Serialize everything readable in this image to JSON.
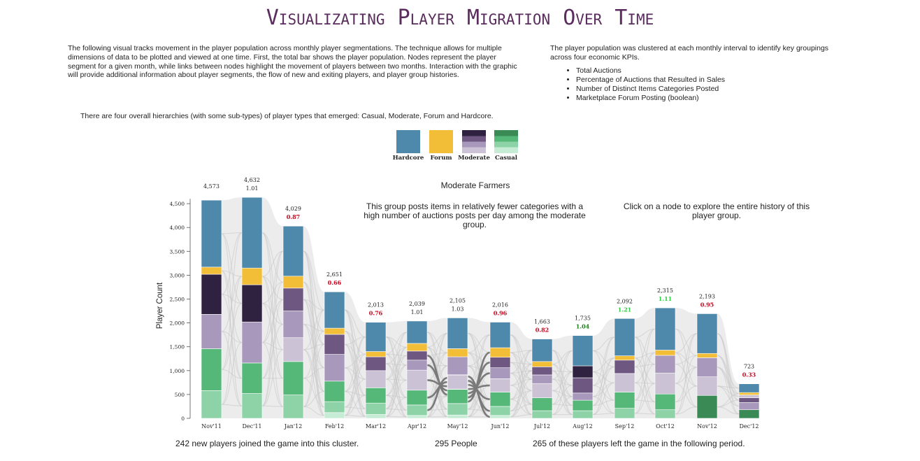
{
  "title": "Visualizating Player Migration Over Time",
  "intro_left": "The following visual tracks movement in the player population across monthly player segmentations. The technique allows for multiple dimensions of data to be plotted and viewed at one time. First, the total bar shows the player population. Nodes represent the player segment for a given month, while links between nodes highlight the movement of players between two months. Interaction with the graphic will provide additional information about player segments, the flow of new and exiting players, and player group histories.",
  "intro_right": "The player population was clustered at each monthly interval to identify key groupings across four economic KPIs.",
  "kpis": [
    "Total Auctions",
    "Percentage of Auctions that Resulted in Sales",
    "Number of Distinct Items Categories Posted",
    "Marketplace Forum Posting (boolean)"
  ],
  "hierarchy_text": "There are four overall hierarchies (with some sub-types) of player types that emerged: Casual, Moderate, Forum and Hardcore.",
  "legend": [
    {
      "label": "Hardcore",
      "colors": [
        "#4e88aa"
      ]
    },
    {
      "label": "Forum",
      "colors": [
        "#f2bd37"
      ]
    },
    {
      "label": "Moderate",
      "colors": [
        "#2f2240",
        "#6e5882",
        "#a898bb",
        "#cbc2d6"
      ]
    },
    {
      "label": "Casual",
      "colors": [
        "#3a8a55",
        "#56b878",
        "#8ed3a8",
        "#c7ecd5"
      ]
    }
  ],
  "info": {
    "group_name": "Moderate Farmers",
    "group_desc": "This group posts items in relatively fewer categories with a high number of auctions posts per day among the moderate group.",
    "hint": "Click on a node to explore the entire history of this player group.",
    "new_players": "242 new players joined the game into this cluster.",
    "people": "295 People",
    "left_players": "265 of these players left the game in the following period."
  },
  "chart_data": {
    "type": "bar",
    "ylabel": "Player Count",
    "ylim": [
      0,
      4600
    ],
    "yticks": [
      0,
      500,
      1000,
      1500,
      2000,
      2500,
      3000,
      3500,
      4000,
      4500
    ],
    "ytick_labels": [
      "0",
      "500",
      "1,000",
      "1,500",
      "2,000",
      "2,500",
      "3,000",
      "3,500",
      "4,000",
      "4,500"
    ],
    "categories": [
      "Nov'11",
      "Dec'11",
      "Jan'12",
      "Feb'12",
      "Mar'12",
      "Apr'12",
      "May'12",
      "Jun'12",
      "Jul'12",
      "Aug'12",
      "Sep'12",
      "Oct'12",
      "Nov'12",
      "Dec'12"
    ],
    "totals": [
      4573,
      4632,
      4029,
      2651,
      2013,
      2039,
      2105,
      2016,
      1663,
      1735,
      2092,
      2315,
      2193,
      723
    ],
    "total_labels": [
      "4,573",
      "4,632",
      "4,029",
      "2,651",
      "2,013",
      "2,039",
      "2,105",
      "2,016",
      "1,663",
      "1,735",
      "2,092",
      "2,315",
      "2,193",
      "723"
    ],
    "ratio_labels": [
      "",
      "1.01",
      "0.87",
      "0.66",
      "0.76",
      "1.01",
      "1.03",
      "0.96",
      "0.82",
      "1.04",
      "1.21",
      "1.11",
      "0.95",
      "0.33"
    ],
    "ratio_colors": [
      "#222222",
      "#222222",
      "#d0021b",
      "#d0021b",
      "#d0021b",
      "#222222",
      "#222222",
      "#d0021b",
      "#d0021b",
      "#1a7f1a",
      "#2ecc40",
      "#2ecc40",
      "#d0021b",
      "#d0021b"
    ],
    "segment_colors": {
      "hardcore": "#4e88aa",
      "forum": "#f2bd37",
      "mod_dark": "#2f2240",
      "mod_mid": "#6e5882",
      "mod_light": "#a898bb",
      "mod_pale": "#cbc2d6",
      "cas_dark": "#3a8a55",
      "cas_mid": "#56b878",
      "cas_light": "#8ed3a8",
      "cas_pale": "#c7ecd5"
    },
    "segments": [
      [
        [
          "cas_light",
          580
        ],
        [
          "cas_mid",
          880
        ],
        [
          "mod_light",
          720
        ],
        [
          "mod_dark",
          840
        ],
        [
          "forum",
          150
        ],
        [
          "hardcore",
          1403
        ]
      ],
      [
        [
          "cas_light",
          520
        ],
        [
          "cas_mid",
          640
        ],
        [
          "mod_light",
          860
        ],
        [
          "mod_dark",
          780
        ],
        [
          "forum",
          350
        ],
        [
          "hardcore",
          1482
        ]
      ],
      [
        [
          "cas_light",
          490
        ],
        [
          "cas_mid",
          700
        ],
        [
          "mod_pale",
          500
        ],
        [
          "mod_light",
          560
        ],
        [
          "mod_mid",
          480
        ],
        [
          "forum",
          250
        ],
        [
          "hardcore",
          1049
        ]
      ],
      [
        [
          "cas_pale",
          120
        ],
        [
          "cas_light",
          230
        ],
        [
          "cas_mid",
          430
        ],
        [
          "mod_light",
          560
        ],
        [
          "mod_mid",
          420
        ],
        [
          "forum",
          130
        ],
        [
          "hardcore",
          761
        ]
      ],
      [
        [
          "cas_pale",
          80
        ],
        [
          "cas_light",
          240
        ],
        [
          "cas_mid",
          320
        ],
        [
          "mod_pale",
          360
        ],
        [
          "mod_mid",
          290
        ],
        [
          "forum",
          110
        ],
        [
          "hardcore",
          613
        ]
      ],
      [
        [
          "cas_pale",
          60
        ],
        [
          "cas_light",
          220
        ],
        [
          "cas_mid",
          310
        ],
        [
          "mod_pale",
          420
        ],
        [
          "mod_light",
          210
        ],
        [
          "mod_mid",
          190
        ],
        [
          "forum",
          160
        ],
        [
          "hardcore",
          469
        ]
      ],
      [
        [
          "cas_pale",
          70
        ],
        [
          "cas_light",
          240
        ],
        [
          "cas_mid",
          300
        ],
        [
          "mod_pale",
          300
        ],
        [
          "mod_light",
          380
        ],
        [
          "forum",
          170
        ],
        [
          "hardcore",
          645
        ]
      ],
      [
        [
          "cas_pale",
          60
        ],
        [
          "cas_light",
          190
        ],
        [
          "cas_mid",
          300
        ],
        [
          "mod_pale",
          280
        ],
        [
          "mod_light",
          230
        ],
        [
          "mod_mid",
          220
        ],
        [
          "forum",
          200
        ],
        [
          "hardcore",
          536
        ]
      ],
      [
        [
          "cas_light",
          160
        ],
        [
          "cas_mid",
          270
        ],
        [
          "mod_pale",
          300
        ],
        [
          "mod_light",
          180
        ],
        [
          "mod_mid",
          170
        ],
        [
          "forum",
          110
        ],
        [
          "hardcore",
          473
        ]
      ],
      [
        [
          "cas_light",
          160
        ],
        [
          "cas_mid",
          220
        ],
        [
          "mod_light",
          150
        ],
        [
          "mod_mid",
          320
        ],
        [
          "mod_dark",
          250
        ],
        [
          "hardcore",
          635
        ]
      ],
      [
        [
          "cas_light",
          210
        ],
        [
          "cas_mid",
          340
        ],
        [
          "mod_pale",
          390
        ],
        [
          "mod_mid",
          280
        ],
        [
          "forum",
          90
        ],
        [
          "hardcore",
          782
        ]
      ],
      [
        [
          "cas_light",
          180
        ],
        [
          "cas_mid",
          330
        ],
        [
          "mod_pale",
          440
        ],
        [
          "mod_light",
          370
        ],
        [
          "forum",
          110
        ],
        [
          "hardcore",
          885
        ]
      ],
      [
        [
          "cas_dark",
          480
        ],
        [
          "mod_pale",
          390
        ],
        [
          "mod_light",
          400
        ],
        [
          "forum",
          90
        ],
        [
          "hardcore",
          833
        ]
      ],
      [
        [
          "cas_dark",
          180
        ],
        [
          "mod_light",
          150
        ],
        [
          "mod_mid",
          100
        ],
        [
          "mod_pale",
          60
        ],
        [
          "forum",
          50
        ],
        [
          "hardcore",
          183
        ]
      ]
    ]
  }
}
